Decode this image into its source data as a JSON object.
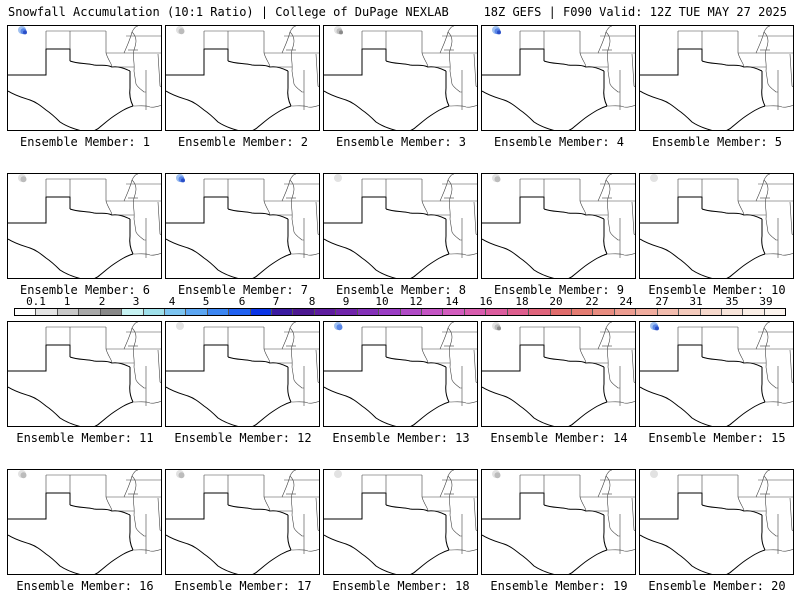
{
  "header": {
    "left": "Snowfall Accumulation (10:1 Ratio) | College of DuPage NEXLAB",
    "right": "18Z GEFS | F090 Valid: 12Z TUE MAY 27 2025"
  },
  "panels": [
    {
      "label": "Ensemble Member: 1",
      "snow": [
        {
          "shade": "blue",
          "intensity": 3
        }
      ]
    },
    {
      "label": "Ensemble Member: 2",
      "snow": [
        {
          "shade": "gray",
          "intensity": 2
        }
      ]
    },
    {
      "label": "Ensemble Member: 3",
      "snow": [
        {
          "shade": "gray",
          "intensity": 3
        }
      ]
    },
    {
      "label": "Ensemble Member: 4",
      "snow": [
        {
          "shade": "blue",
          "intensity": 3
        }
      ]
    },
    {
      "label": "Ensemble Member: 5",
      "snow": []
    },
    {
      "label": "Ensemble Member: 6",
      "snow": [
        {
          "shade": "gray",
          "intensity": 2
        }
      ]
    },
    {
      "label": "Ensemble Member: 7",
      "snow": [
        {
          "shade": "blue",
          "intensity": 3
        }
      ]
    },
    {
      "label": "Ensemble Member: 8",
      "snow": [
        {
          "shade": "gray",
          "intensity": 1
        }
      ]
    },
    {
      "label": "Ensemble Member: 9",
      "snow": [
        {
          "shade": "gray",
          "intensity": 2
        }
      ]
    },
    {
      "label": "Ensemble Member: 10",
      "snow": [
        {
          "shade": "gray",
          "intensity": 1
        }
      ]
    },
    {
      "label": "Ensemble Member: 11",
      "snow": []
    },
    {
      "label": "Ensemble Member: 12",
      "snow": [
        {
          "shade": "gray",
          "intensity": 1
        }
      ]
    },
    {
      "label": "Ensemble Member: 13",
      "snow": [
        {
          "shade": "blue",
          "intensity": 2
        }
      ]
    },
    {
      "label": "Ensemble Member: 14",
      "snow": [
        {
          "shade": "gray",
          "intensity": 3
        }
      ]
    },
    {
      "label": "Ensemble Member: 15",
      "snow": [
        {
          "shade": "blue",
          "intensity": 3
        }
      ]
    },
    {
      "label": "Ensemble Member: 16",
      "snow": [
        {
          "shade": "gray",
          "intensity": 2
        }
      ]
    },
    {
      "label": "Ensemble Member: 17",
      "snow": [
        {
          "shade": "gray",
          "intensity": 2
        }
      ]
    },
    {
      "label": "Ensemble Member: 18",
      "snow": [
        {
          "shade": "gray",
          "intensity": 1
        }
      ]
    },
    {
      "label": "Ensemble Member: 19",
      "snow": [
        {
          "shade": "gray",
          "intensity": 2
        }
      ]
    },
    {
      "label": "Ensemble Member: 20",
      "snow": [
        {
          "shade": "gray",
          "intensity": 1
        }
      ]
    }
  ],
  "colorbar": {
    "labels": [
      "0.1",
      "1",
      "2",
      "3",
      "4",
      "5",
      "6",
      "7",
      "8",
      "9",
      "10",
      "12",
      "14",
      "16",
      "18",
      "20",
      "22",
      "24",
      "27",
      "31",
      "35",
      "39"
    ],
    "colors": [
      "#ffffff",
      "#e4e4e4",
      "#c8c8c8",
      "#a8a8a8",
      "#888888",
      "#c6f2f2",
      "#9fe0ea",
      "#7cc4f0",
      "#5ca6f2",
      "#3c86f2",
      "#2060f0",
      "#0a34e6",
      "#3a1aa0",
      "#4c1890",
      "#5e1c9e",
      "#7024aa",
      "#8430b8",
      "#9a3cc4",
      "#b04ac6",
      "#c454c4",
      "#d25cbe",
      "#d85cae",
      "#dc5c9e",
      "#de5e8e",
      "#e0647c",
      "#e06c6c",
      "#e47c72",
      "#e88c80",
      "#ec9c90",
      "#f0ac9e",
      "#f2bcae",
      "#f4cabc",
      "#f6d8cc",
      "#f8e4da",
      "#faeee6",
      "#fcf4ee"
    ]
  }
}
